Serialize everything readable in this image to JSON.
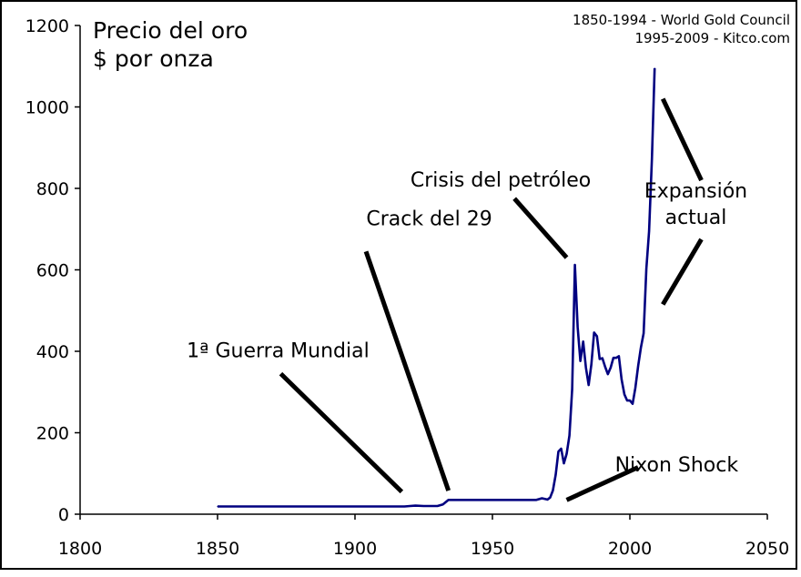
{
  "chart_data": {
    "type": "line",
    "title_lines": [
      "Precio del oro",
      "$ por onza"
    ],
    "source_lines": [
      "1850-1994 - World Gold Council",
      "1995-2009 - Kitco.com"
    ],
    "xlim": [
      1800,
      2050
    ],
    "ylim": [
      0,
      1200
    ],
    "x_ticks": [
      1800,
      1850,
      1900,
      1950,
      2000,
      2050
    ],
    "y_ticks": [
      0,
      200,
      400,
      600,
      800,
      1000,
      1200
    ],
    "grid": false,
    "legend": "none",
    "series": [
      {
        "color": "#000080",
        "points": [
          [
            1850,
            19
          ],
          [
            1860,
            19
          ],
          [
            1870,
            19
          ],
          [
            1880,
            19
          ],
          [
            1890,
            19
          ],
          [
            1900,
            19
          ],
          [
            1910,
            19
          ],
          [
            1918,
            19
          ],
          [
            1920,
            20
          ],
          [
            1922,
            21
          ],
          [
            1925,
            20
          ],
          [
            1930,
            20
          ],
          [
            1932,
            24
          ],
          [
            1934,
            35
          ],
          [
            1940,
            35
          ],
          [
            1950,
            35
          ],
          [
            1960,
            35
          ],
          [
            1966,
            35
          ],
          [
            1968,
            39
          ],
          [
            1970,
            36
          ],
          [
            1971,
            41
          ],
          [
            1972,
            58
          ],
          [
            1973,
            97
          ],
          [
            1974,
            154
          ],
          [
            1975,
            161
          ],
          [
            1976,
            125
          ],
          [
            1977,
            148
          ],
          [
            1978,
            193
          ],
          [
            1979,
            307
          ],
          [
            1980,
            612
          ],
          [
            1981,
            460
          ],
          [
            1982,
            376
          ],
          [
            1983,
            424
          ],
          [
            1984,
            360
          ],
          [
            1985,
            317
          ],
          [
            1986,
            368
          ],
          [
            1987,
            446
          ],
          [
            1988,
            437
          ],
          [
            1989,
            381
          ],
          [
            1990,
            383
          ],
          [
            1991,
            362
          ],
          [
            1992,
            344
          ],
          [
            1993,
            360
          ],
          [
            1994,
            384
          ],
          [
            1995,
            384
          ],
          [
            1996,
            388
          ],
          [
            1997,
            331
          ],
          [
            1998,
            294
          ],
          [
            1999,
            279
          ],
          [
            2000,
            279
          ],
          [
            2001,
            271
          ],
          [
            2002,
            310
          ],
          [
            2003,
            364
          ],
          [
            2004,
            409
          ],
          [
            2005,
            444
          ],
          [
            2006,
            603
          ],
          [
            2007,
            695
          ],
          [
            2008,
            872
          ],
          [
            2009,
            1095
          ]
        ]
      }
    ],
    "annotations": [
      {
        "label": "1ª Guerra Mundial",
        "x": 1872,
        "y": 385,
        "anchor": "middle",
        "line": [
          [
            1873,
            345
          ],
          [
            1917,
            55
          ]
        ]
      },
      {
        "label": "Crack del 29",
        "x": 1927,
        "y": 710,
        "anchor": "middle",
        "line": [
          [
            1904,
            645
          ],
          [
            1934,
            58
          ]
        ]
      },
      {
        "label": "Crisis del petróleo",
        "x": 1953,
        "y": 805,
        "anchor": "middle",
        "line": [
          [
            1958,
            775
          ],
          [
            1977,
            630
          ]
        ]
      },
      {
        "label": "Expansión\nactual",
        "x": 2024,
        "y": 778,
        "anchor": "middle",
        "line": [
          [
            2012,
            1020
          ],
          [
            2026,
            820
          ]
        ],
        "line2": [
          [
            2012,
            515
          ],
          [
            2026,
            675
          ]
        ]
      },
      {
        "label": "Nixon Shock",
        "x": 2017,
        "y": 105,
        "anchor": "middle",
        "line": [
          [
            1977,
            35
          ],
          [
            2003,
            115
          ]
        ]
      }
    ]
  }
}
